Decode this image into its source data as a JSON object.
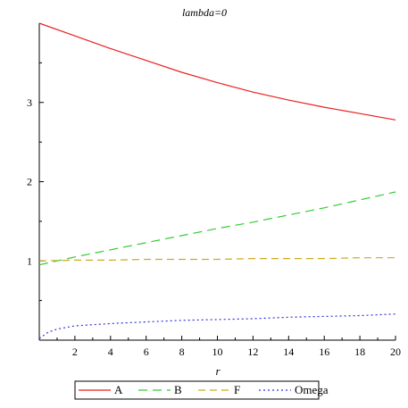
{
  "chart_data": {
    "type": "line",
    "title": "lambda=0",
    "xlabel": "r",
    "ylabel": "",
    "xlim": [
      0,
      20
    ],
    "ylim": [
      0,
      4
    ],
    "xticks": [
      2,
      4,
      6,
      8,
      10,
      12,
      14,
      16,
      18,
      20
    ],
    "yticks": [
      1,
      2,
      3
    ],
    "grid": false,
    "legend_position": "bottom",
    "series": [
      {
        "name": "A",
        "color": "#e8211f",
        "dash": "solid",
        "x": [
          0,
          2,
          4,
          6,
          8,
          10,
          12,
          14,
          16,
          18,
          20
        ],
        "y": [
          4.0,
          3.84,
          3.68,
          3.53,
          3.38,
          3.25,
          3.13,
          3.03,
          2.94,
          2.86,
          2.78
        ]
      },
      {
        "name": "B",
        "color": "#33cc33",
        "dash": "long-dash",
        "x": [
          0,
          2,
          4,
          6,
          8,
          10,
          12,
          14,
          16,
          18,
          20
        ],
        "y": [
          0.95,
          1.05,
          1.14,
          1.23,
          1.32,
          1.41,
          1.49,
          1.58,
          1.67,
          1.77,
          1.87
        ]
      },
      {
        "name": "F",
        "color": "#ccaa22",
        "dash": "dash",
        "x": [
          0,
          2,
          4,
          6,
          8,
          10,
          12,
          14,
          16,
          18,
          20
        ],
        "y": [
          1.0,
          1.01,
          1.01,
          1.02,
          1.02,
          1.02,
          1.03,
          1.03,
          1.03,
          1.04,
          1.04
        ]
      },
      {
        "name": "Omega",
        "color": "#3333dd",
        "dash": "dot",
        "x": [
          0,
          0.5,
          1,
          2,
          4,
          6,
          8,
          10,
          12,
          14,
          16,
          18,
          20
        ],
        "y": [
          0.02,
          0.1,
          0.14,
          0.18,
          0.21,
          0.23,
          0.25,
          0.26,
          0.27,
          0.29,
          0.3,
          0.31,
          0.33
        ]
      }
    ]
  }
}
